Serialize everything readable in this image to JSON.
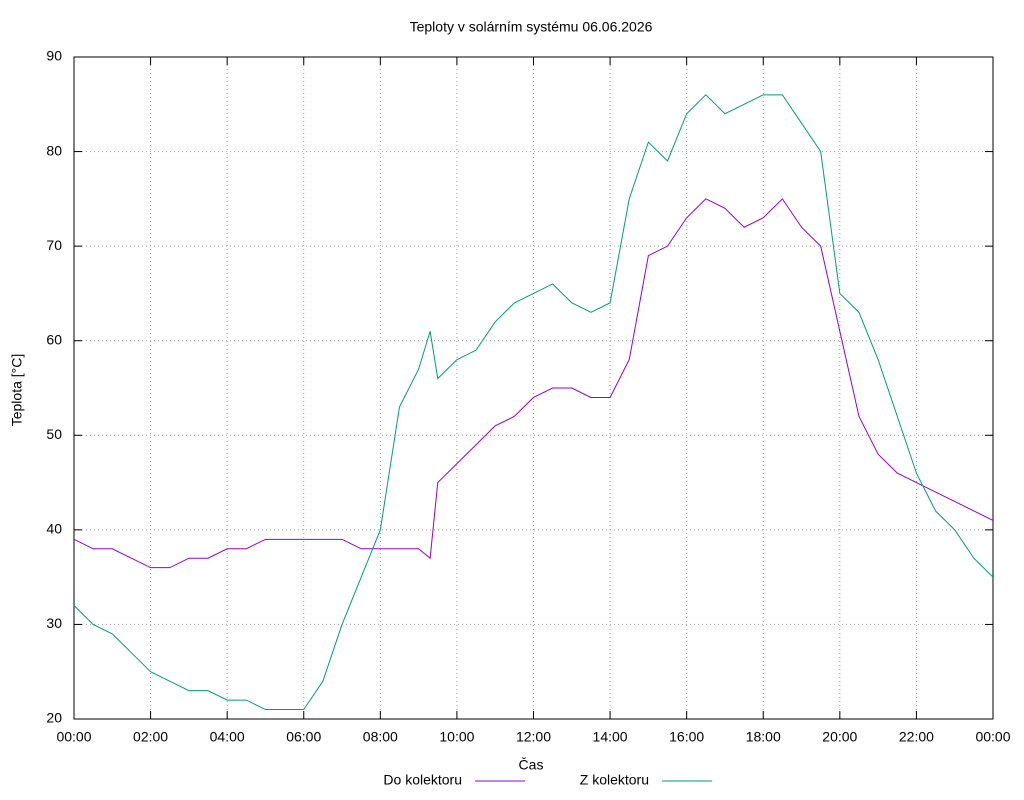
{
  "chart_data": {
    "type": "line",
    "title": "Teploty v solárním systému 06.06.2026",
    "xlabel": "Čas",
    "ylabel": "Teplota [°C]",
    "x": [
      0,
      0.5,
      1,
      1.5,
      2,
      2.5,
      3,
      3.5,
      4,
      4.5,
      5,
      5.5,
      6,
      6.5,
      7,
      7.5,
      8,
      8.5,
      9,
      9.3,
      9.5,
      10,
      10.5,
      11,
      11.5,
      12,
      12.5,
      13,
      13.5,
      14,
      14.5,
      15,
      15.5,
      16,
      16.5,
      17,
      17.5,
      18,
      18.5,
      19,
      19.5,
      20,
      20.5,
      21,
      21.5,
      22,
      22.5,
      23,
      23.5,
      24
    ],
    "series": [
      {
        "name": "Do kolektoru",
        "color": "#9400d3",
        "values": [
          39,
          38,
          38,
          37,
          36,
          36,
          37,
          37,
          38,
          38,
          39,
          39,
          39,
          39,
          39,
          38,
          38,
          38,
          38,
          37,
          45,
          47,
          49,
          51,
          52,
          54,
          55,
          55,
          54,
          54,
          58,
          69,
          70,
          73,
          75,
          74,
          72,
          73,
          75,
          72,
          70,
          61,
          52,
          48,
          46,
          45,
          44,
          43,
          42,
          41
        ]
      },
      {
        "name": "Z kolektoru",
        "color": "#009e73",
        "values": [
          32,
          30,
          29,
          27,
          25,
          24,
          23,
          23,
          22,
          22,
          21,
          21,
          21,
          24,
          30,
          35,
          40,
          53,
          57,
          61,
          56,
          58,
          59,
          62,
          64,
          65,
          66,
          64,
          63,
          64,
          75,
          81,
          79,
          84,
          86,
          84,
          85,
          86,
          86,
          83,
          80,
          65,
          63,
          58,
          52,
          46,
          42,
          40,
          37,
          35
        ]
      }
    ],
    "xlim": [
      0,
      24
    ],
    "xticks": [
      {
        "value": 0,
        "label": "00:00"
      },
      {
        "value": 2,
        "label": "02:00"
      },
      {
        "value": 4,
        "label": "04:00"
      },
      {
        "value": 6,
        "label": "06:00"
      },
      {
        "value": 8,
        "label": "08:00"
      },
      {
        "value": 10,
        "label": "10:00"
      },
      {
        "value": 12,
        "label": "12:00"
      },
      {
        "value": 14,
        "label": "14:00"
      },
      {
        "value": 16,
        "label": "16:00"
      },
      {
        "value": 18,
        "label": "18:00"
      },
      {
        "value": 20,
        "label": "20:00"
      },
      {
        "value": 22,
        "label": "22:00"
      },
      {
        "value": 24,
        "label": "00:00"
      }
    ],
    "ylim": [
      20,
      90
    ],
    "yticks": [
      20,
      30,
      40,
      50,
      60,
      70,
      80,
      90
    ],
    "grid": true
  }
}
